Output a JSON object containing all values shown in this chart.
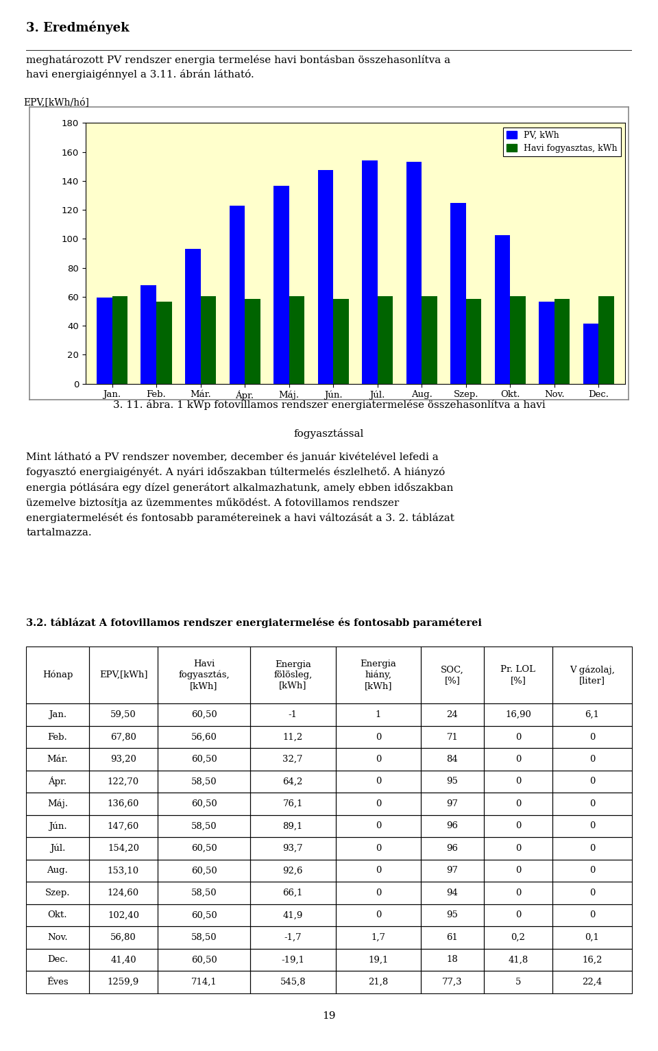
{
  "section_title": "3. Eredmények",
  "intro_text": "meghatározott PV rendszer energia termelése havi bontásban összehasonlítva a\nhavi energiaigénnyel a 3.11. ábrán látható.",
  "chart": {
    "ylabel": "EPV,[kWh/hó]",
    "ylim": [
      0,
      180
    ],
    "yticks": [
      0,
      20,
      40,
      60,
      80,
      100,
      120,
      140,
      160,
      180
    ],
    "months": [
      "Jan.",
      "Feb.",
      "Már.",
      "Ápr.",
      "Máj.",
      "Jún.",
      "Júl.",
      "Aug.",
      "Szep.",
      "Okt.",
      "Nov.",
      "Dec."
    ],
    "pv_values": [
      59.5,
      67.8,
      93.2,
      122.7,
      136.6,
      147.6,
      154.2,
      153.1,
      124.6,
      102.4,
      56.8,
      41.4
    ],
    "consumption_values": [
      60.5,
      56.6,
      60.5,
      58.5,
      60.5,
      58.5,
      60.5,
      60.5,
      58.5,
      60.5,
      58.5,
      60.5
    ],
    "pv_color": "#0000FF",
    "consumption_color": "#006400",
    "background_color": "#FFFFCC",
    "legend_pv": "PV, kWh",
    "legend_consumption": "Havi fogyasztas, kWh"
  },
  "figure_caption_line1": "3. 11. ábra. 1 kWp fotovillamos rendszer energiatermelése összehasonlítva a havi",
  "figure_caption_line2": "fogyasztással",
  "body_text": "Mint látható a PV rendszer november, december és január kivételével lefedi a\nfogyasztó energiaigényét. A nyári időszakban túltermelés észlelhető. A hiányzó\nenergia pótlására egy dízel generátort alkalmazhatunk, amely ebben időszakban\nüzemelve biztosítja az üzemmentes működést. A fotovillamos rendszer\nenergiatermelését és fontosabb paramétereinek a havi változását a 3. 2. táblázat\ntartalmazza.",
  "table_title": "3.2. táblázat A fotovillamos rendszer energiatermelése és fontosabb paraméterei",
  "table_headers": [
    "Hónap",
    "EPV,[kWh]",
    "Havi\nfogyasztás,\n[kWh]",
    "Energia\nfölösleg,\n[kWh]",
    "Energia\nhiány,\n[kWh]",
    "SOC,\n[%]",
    "Pr. LOL\n[%]",
    "V gázolaj,\n[liter]"
  ],
  "table_data": [
    [
      "Jan.",
      "59,50",
      "60,50",
      "-1",
      "1",
      "24",
      "16,90",
      "6,1"
    ],
    [
      "Feb.",
      "67,80",
      "56,60",
      "11,2",
      "0",
      "71",
      "0",
      "0"
    ],
    [
      "Már.",
      "93,20",
      "60,50",
      "32,7",
      "0",
      "84",
      "0",
      "0"
    ],
    [
      "Ápr.",
      "122,70",
      "58,50",
      "64,2",
      "0",
      "95",
      "0",
      "0"
    ],
    [
      "Máj.",
      "136,60",
      "60,50",
      "76,1",
      "0",
      "97",
      "0",
      "0"
    ],
    [
      "Jún.",
      "147,60",
      "58,50",
      "89,1",
      "0",
      "96",
      "0",
      "0"
    ],
    [
      "Júl.",
      "154,20",
      "60,50",
      "93,7",
      "0",
      "96",
      "0",
      "0"
    ],
    [
      "Aug.",
      "153,10",
      "60,50",
      "92,6",
      "0",
      "97",
      "0",
      "0"
    ],
    [
      "Szep.",
      "124,60",
      "58,50",
      "66,1",
      "0",
      "94",
      "0",
      "0"
    ],
    [
      "Okt.",
      "102,40",
      "60,50",
      "41,9",
      "0",
      "95",
      "0",
      "0"
    ],
    [
      "Nov.",
      "56,80",
      "58,50",
      "-1,7",
      "1,7",
      "61",
      "0,2",
      "0,1"
    ],
    [
      "Dec.",
      "41,40",
      "60,50",
      "-19,1",
      "19,1",
      "18",
      "41,8",
      "16,2"
    ],
    [
      "Éves",
      "1259,9",
      "714,1",
      "545,8",
      "21,8",
      "77,3",
      "5",
      "22,4"
    ]
  ],
  "page_number": "19"
}
